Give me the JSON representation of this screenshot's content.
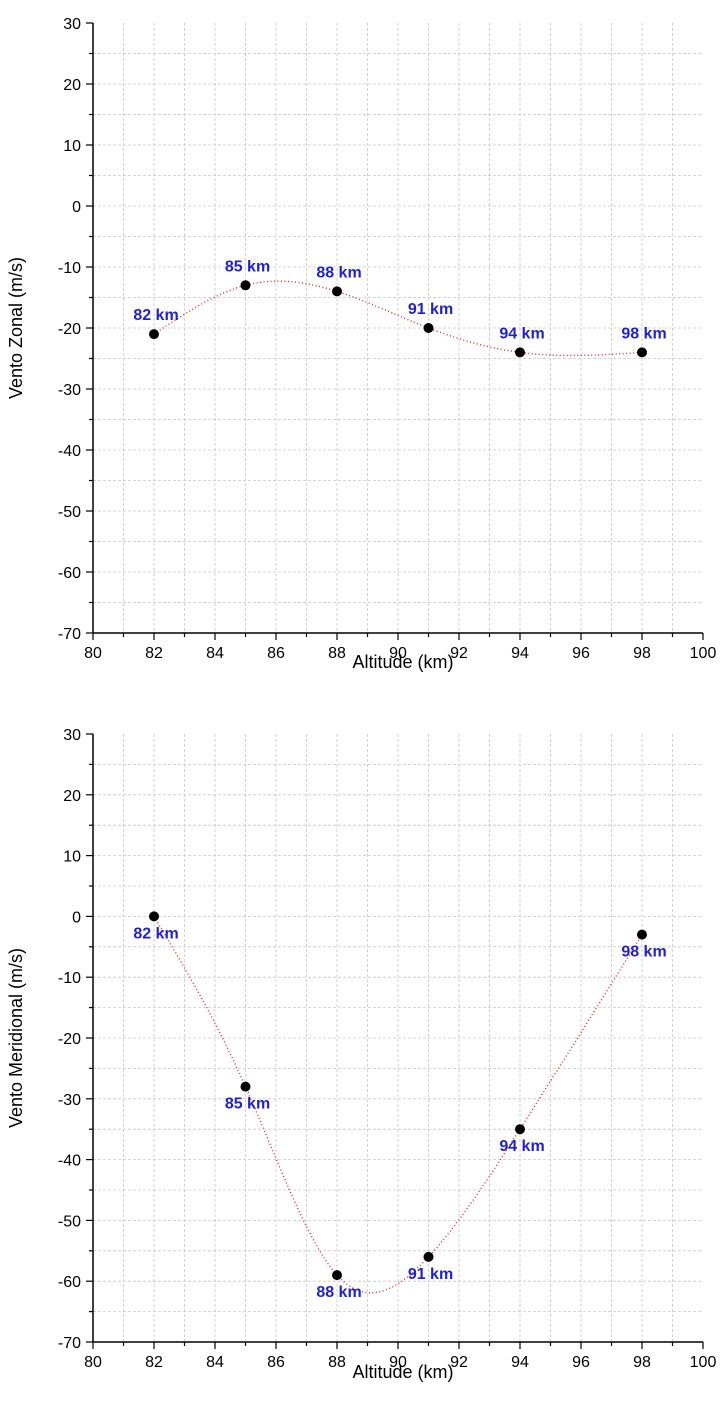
{
  "colors": {
    "point": "#000000",
    "label": "#1f1fd8",
    "curve": "#e8202a",
    "grid": "#c8c8c8",
    "axis": "#000000"
  },
  "chart_data": [
    {
      "type": "scatter",
      "title": "",
      "xlabel": "Altitude (km)",
      "ylabel": "Vento Zonal (m/s)",
      "xlim": [
        80,
        100
      ],
      "ylim": [
        -70,
        30
      ],
      "xticks": [
        80,
        82,
        84,
        86,
        88,
        90,
        92,
        94,
        96,
        98,
        100
      ],
      "yticks": [
        30,
        20,
        10,
        0,
        -10,
        -20,
        -30,
        -40,
        -50,
        -60,
        -70
      ],
      "grid": true,
      "fit_line": "dotted smooth curve through points",
      "points": [
        {
          "x": 82,
          "y": -21,
          "label": "82 km",
          "label_pos": "above"
        },
        {
          "x": 85,
          "y": -13,
          "label": "85 km",
          "label_pos": "above"
        },
        {
          "x": 88,
          "y": -14,
          "label": "88 km",
          "label_pos": "above"
        },
        {
          "x": 91,
          "y": -20,
          "label": "91 km",
          "label_pos": "above"
        },
        {
          "x": 94,
          "y": -24,
          "label": "94 km",
          "label_pos": "above"
        },
        {
          "x": 98,
          "y": -24,
          "label": "98 km",
          "label_pos": "above"
        }
      ]
    },
    {
      "type": "scatter",
      "title": "",
      "xlabel": "Altitude (km)",
      "ylabel": "Vento Meridional (m/s)",
      "xlim": [
        80,
        100
      ],
      "ylim": [
        -70,
        30
      ],
      "xticks": [
        80,
        82,
        84,
        86,
        88,
        90,
        92,
        94,
        96,
        98,
        100
      ],
      "yticks": [
        30,
        20,
        10,
        0,
        -10,
        -20,
        -30,
        -40,
        -50,
        -60,
        -70
      ],
      "grid": true,
      "fit_line": "dotted smooth curve through points",
      "points": [
        {
          "x": 82,
          "y": 0,
          "label": "82 km",
          "label_pos": "below"
        },
        {
          "x": 85,
          "y": -28,
          "label": "85 km",
          "label_pos": "below"
        },
        {
          "x": 88,
          "y": -59,
          "label": "88 km",
          "label_pos": "below"
        },
        {
          "x": 91,
          "y": -56,
          "label": "91 km",
          "label_pos": "below"
        },
        {
          "x": 94,
          "y": -35,
          "label": "94 km",
          "label_pos": "below"
        },
        {
          "x": 98,
          "y": -3,
          "label": "98 km",
          "label_pos": "below"
        }
      ]
    }
  ]
}
